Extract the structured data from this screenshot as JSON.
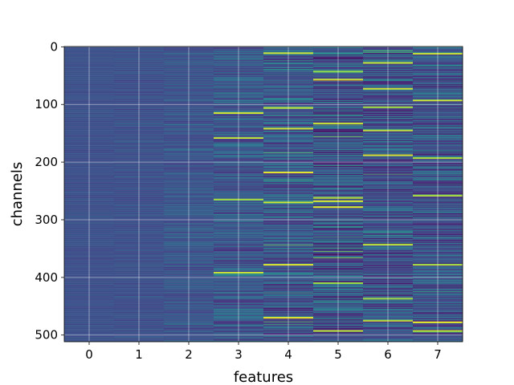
{
  "chart_data": {
    "type": "heatmap",
    "title": "",
    "xlabel": "features",
    "ylabel": "channels",
    "x_ticks": [
      0,
      1,
      2,
      3,
      4,
      5,
      6,
      7
    ],
    "y_ticks": [
      0,
      100,
      200,
      300,
      400,
      500
    ],
    "xlim": [
      -0.5,
      7.5
    ],
    "ylim": [
      511.5,
      -0.5
    ],
    "rows": 512,
    "columns": 8,
    "grid": true,
    "colormap": "viridis",
    "column_intensity_spread": [
      0.04,
      0.06,
      0.1,
      0.18,
      0.22,
      0.26,
      0.24,
      0.22
    ],
    "column_base_level": [
      0.3,
      0.3,
      0.31,
      0.31,
      0.3,
      0.28,
      0.28,
      0.28
    ],
    "bright_rows": {
      "3": [
        115,
        158,
        265,
        392
      ],
      "4": [
        11,
        106,
        142,
        218,
        270,
        378,
        470
      ],
      "5": [
        43,
        57,
        133,
        262,
        268,
        278,
        410,
        493
      ],
      "6": [
        28,
        73,
        105,
        145,
        188,
        343,
        437,
        475
      ],
      "7": [
        12,
        93,
        193,
        258,
        378,
        478,
        493
      ]
    }
  }
}
